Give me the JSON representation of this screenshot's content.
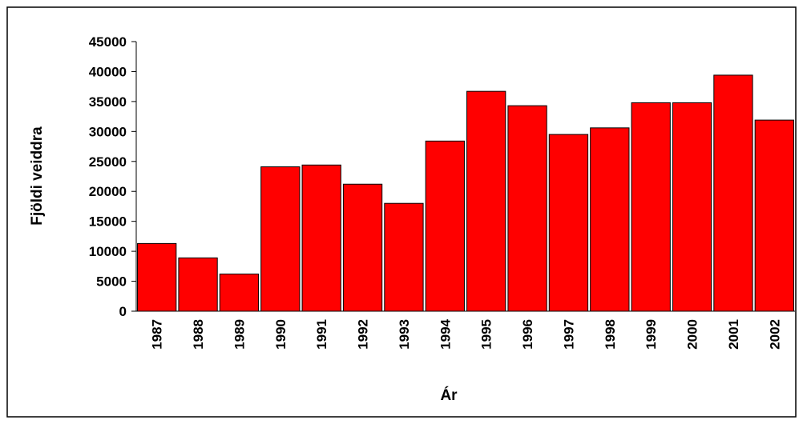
{
  "chart_data": {
    "type": "bar",
    "x_label": "Ár",
    "y_label": "Fjöldi veiddra",
    "categories": [
      "1987",
      "1988",
      "1989",
      "1990",
      "1991",
      "1992",
      "1993",
      "1994",
      "1995",
      "1996",
      "1997",
      "1998",
      "1999",
      "2000",
      "2001",
      "2002"
    ],
    "values": [
      11300,
      8900,
      6200,
      24100,
      24400,
      21200,
      18000,
      28400,
      36700,
      34300,
      29500,
      30600,
      34800,
      34800,
      39400,
      31900
    ],
    "color": "#ff0000",
    "ylim": [
      0,
      45000
    ],
    "yticks": [
      0,
      5000,
      10000,
      15000,
      20000,
      25000,
      30000,
      35000,
      40000,
      45000
    ]
  }
}
